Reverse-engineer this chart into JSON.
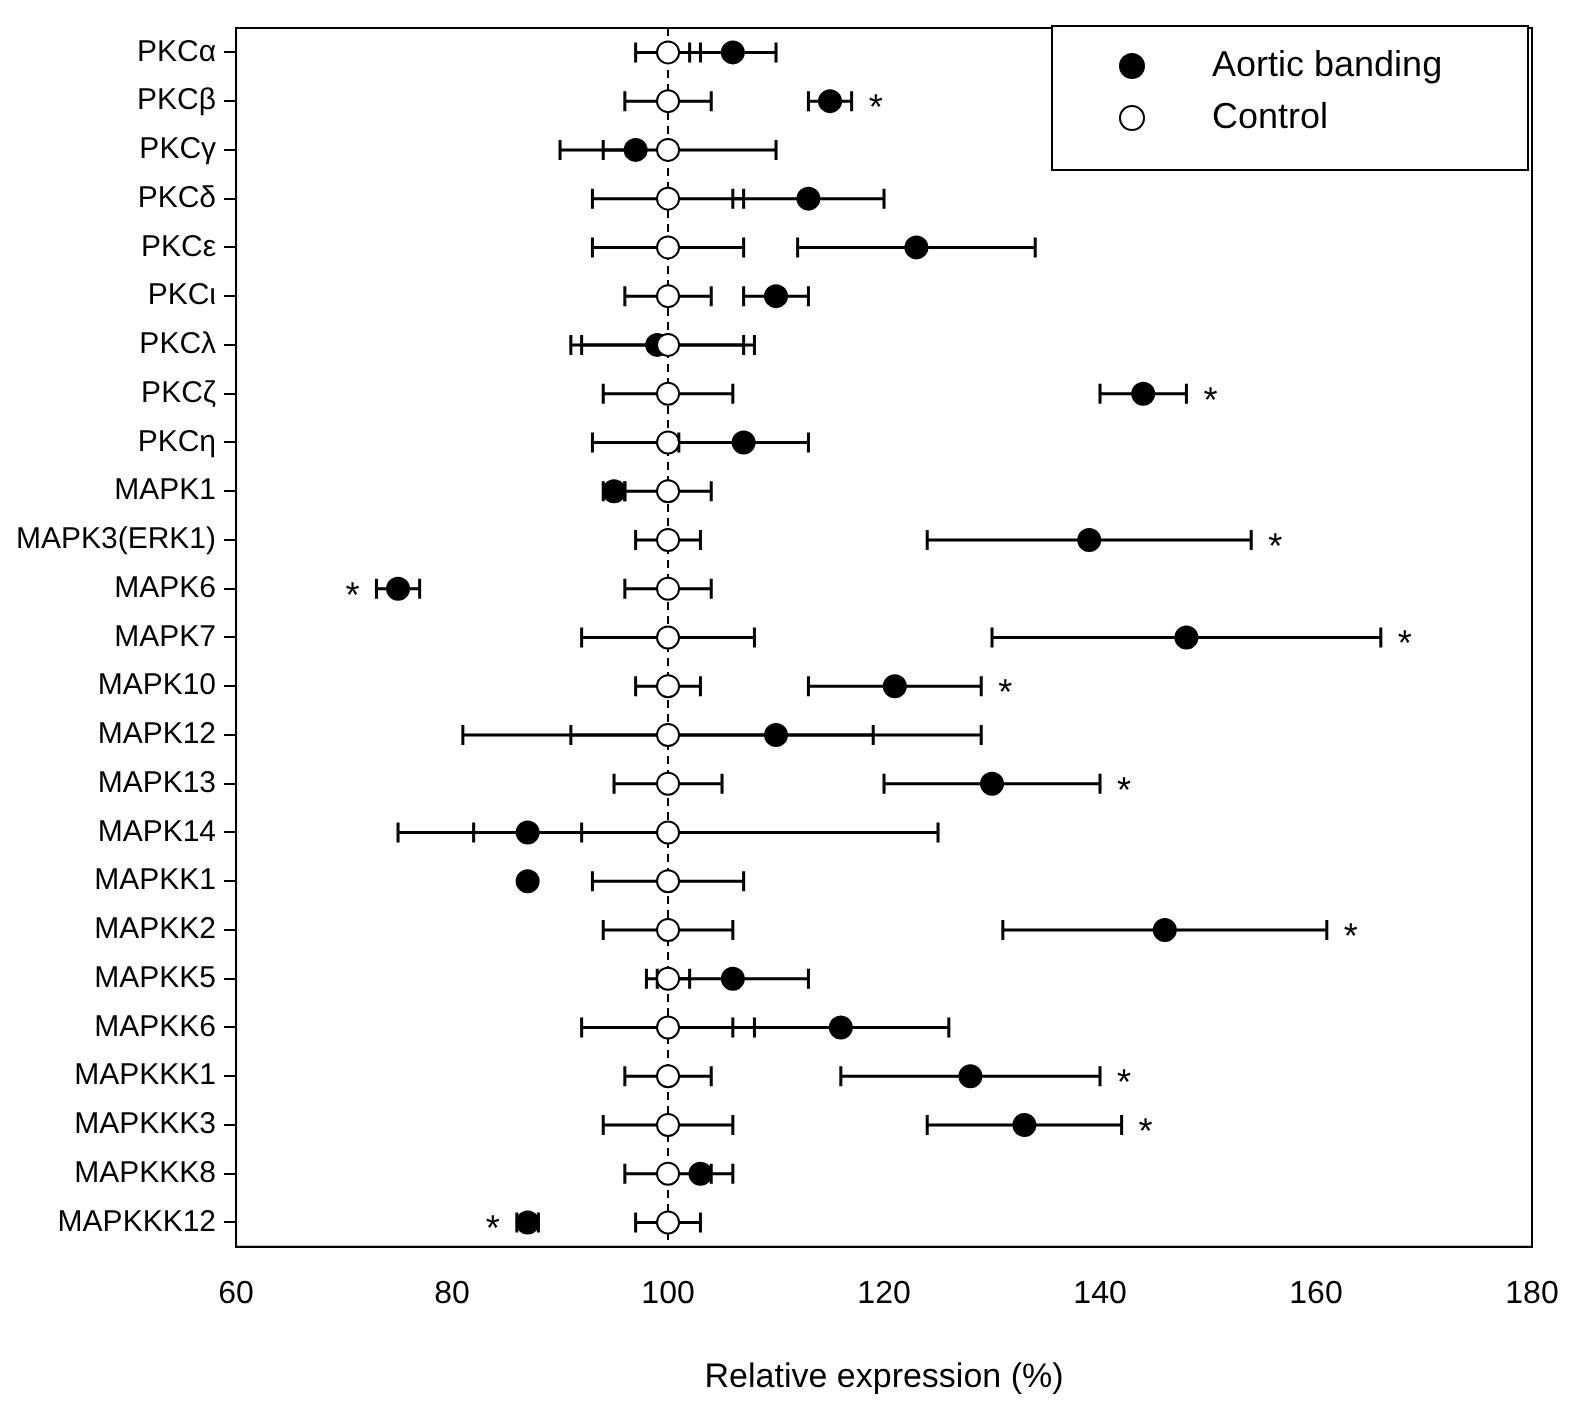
{
  "chart_data": {
    "type": "scatter",
    "orientation": "horizontal",
    "xlabel": "Relative expression (%)",
    "categories": [
      "PKCα",
      "PKCβ",
      "PKCγ",
      "PKCδ",
      "PKCε",
      "PKCι",
      "PKCλ",
      "PKCζ",
      "PKCη",
      "MAPK1",
      "MAPK3(ERK1)",
      "MAPK6",
      "MAPK7",
      "MAPK10",
      "MAPK12",
      "MAPK13",
      "MAPK14",
      "MAPKK1",
      "MAPKK2",
      "MAPKK5",
      "MAPKK6",
      "MAPKKK1",
      "MAPKKK3",
      "MAPKKK8",
      "MAPKKK12"
    ],
    "series": [
      {
        "name": "Aortic banding",
        "color": "#000000",
        "values": [
          106,
          115,
          97,
          113,
          123,
          110,
          99,
          144,
          107,
          95,
          139,
          75,
          148,
          121,
          110,
          130,
          87,
          87,
          146,
          106,
          116,
          128,
          133,
          103,
          87
        ],
        "errors": [
          [
            102,
            110
          ],
          [
            113,
            117
          ],
          [
            94,
            97
          ],
          [
            106,
            120
          ],
          [
            112,
            134
          ],
          [
            107,
            113
          ],
          [
            91,
            107
          ],
          [
            140,
            148
          ],
          [
            101,
            113
          ],
          [
            94,
            96
          ],
          [
            124,
            154
          ],
          [
            73,
            77
          ],
          [
            130,
            166
          ],
          [
            113,
            129
          ],
          [
            91,
            129
          ],
          [
            120,
            140
          ],
          [
            82,
            92
          ],
          null,
          [
            131,
            161
          ],
          [
            99,
            113
          ],
          [
            106,
            126
          ],
          [
            116,
            140
          ],
          [
            124,
            142
          ],
          [
            103,
            106
          ],
          [
            86,
            88
          ]
        ]
      },
      {
        "name": "Control",
        "color": "#ffffff",
        "values": [
          100,
          100,
          100,
          100,
          100,
          100,
          100,
          100,
          100,
          100,
          100,
          100,
          100,
          100,
          100,
          100,
          100,
          100,
          100,
          100,
          100,
          100,
          100,
          100,
          100
        ],
        "errors": [
          [
            97,
            103
          ],
          [
            96,
            104
          ],
          [
            90,
            110
          ],
          [
            93,
            107
          ],
          [
            93,
            107
          ],
          [
            96,
            104
          ],
          [
            92,
            108
          ],
          [
            94,
            106
          ],
          [
            93,
            100
          ],
          [
            96,
            104
          ],
          [
            97,
            103
          ],
          [
            96,
            104
          ],
          [
            92,
            108
          ],
          [
            97,
            103
          ],
          [
            81,
            119
          ],
          [
            95,
            105
          ],
          [
            75,
            125
          ],
          [
            93,
            107
          ],
          [
            94,
            106
          ],
          [
            98,
            102
          ],
          [
            92,
            108
          ],
          [
            96,
            104
          ],
          [
            94,
            106
          ],
          [
            96,
            104
          ],
          [
            97,
            103
          ]
        ]
      }
    ],
    "xlim": [
      60,
      180
    ],
    "xticks": [
      60,
      80,
      100,
      120,
      140,
      160,
      180
    ],
    "ref_lines": [
      {
        "axis": "x",
        "value": 100,
        "line_style": "dashed"
      }
    ],
    "annotations": [
      {
        "text": "*",
        "x": 117,
        "y": "PKCβ"
      },
      {
        "text": "*",
        "x": 148,
        "y": "PKCζ"
      },
      {
        "text": "*",
        "x": 154,
        "y": "MAPK3(ERK1)"
      },
      {
        "text": "*",
        "x": 73,
        "y": "MAPK6"
      },
      {
        "text": "*",
        "x": 166,
        "y": "MAPK7"
      },
      {
        "text": "*",
        "x": 129,
        "y": "MAPK10"
      },
      {
        "text": "*",
        "x": 140,
        "y": "MAPK13"
      },
      {
        "text": "*",
        "x": 161,
        "y": "MAPKK2"
      },
      {
        "text": "*",
        "x": 140,
        "y": "MAPKKK1"
      },
      {
        "text": "*",
        "x": 142,
        "y": "MAPKKK3"
      },
      {
        "text": "*",
        "x": 86,
        "y": "MAPKKK12"
      }
    ],
    "legend": "top right",
    "marker": "circle",
    "grid": false
  }
}
